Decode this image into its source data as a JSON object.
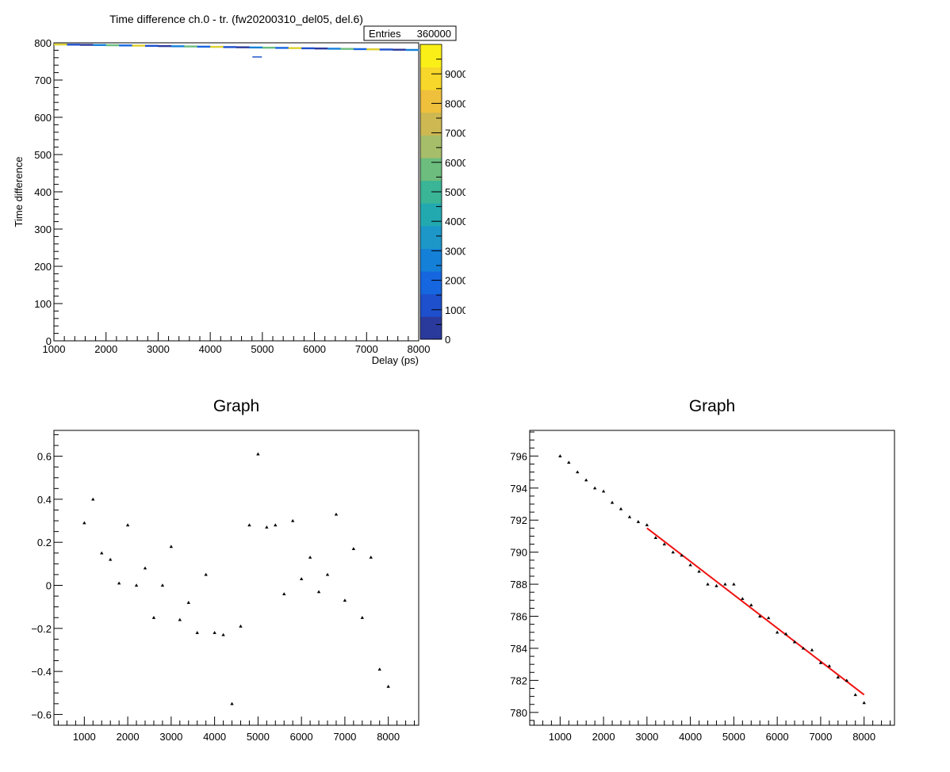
{
  "chart_data": [
    {
      "type": "heatmap",
      "title": "Time difference ch.0 - tr. (fw20200310_del05, del.6)",
      "xlabel": "Delay (ps)",
      "ylabel": "Time difference",
      "xlim": [
        1000,
        8000
      ],
      "ylim": [
        0,
        800
      ],
      "xticks": [
        "1000",
        "2000",
        "3000",
        "4000",
        "5000",
        "6000",
        "7000",
        "8000"
      ],
      "yticks": [
        "0",
        "100",
        "200",
        "300",
        "400",
        "500",
        "600",
        "700",
        "800"
      ],
      "stats_label": "Entries",
      "stats_value": "360000",
      "colorbar_ticks": [
        "0",
        "1000",
        "2000",
        "3000",
        "4000",
        "5000",
        "6000",
        "7000",
        "8000",
        "9000"
      ],
      "colorbar_range": [
        0,
        10000
      ],
      "band": {
        "x": [
          1000,
          8000
        ],
        "y": [
          795.9,
          780.6
        ]
      },
      "outlier": {
        "x": 4900,
        "y": 762
      }
    },
    {
      "type": "scatter",
      "title": "Graph",
      "xlim": [
        300,
        8700
      ],
      "ylim": [
        -0.65,
        0.72
      ],
      "xticks": [
        "1000",
        "2000",
        "3000",
        "4000",
        "5000",
        "6000",
        "7000",
        "8000"
      ],
      "yticks": [
        "−0.6",
        "−0.4",
        "−0.2",
        "0",
        "0.2",
        "0.4",
        "0.6"
      ],
      "x": [
        1000,
        1200,
        1400,
        1600,
        1800,
        2000,
        2200,
        2400,
        2600,
        2800,
        3000,
        3200,
        3400,
        3600,
        3800,
        4000,
        4200,
        4400,
        4600,
        4800,
        5000,
        5200,
        5400,
        5600,
        5800,
        6000,
        6200,
        6400,
        6600,
        6800,
        7000,
        7200,
        7400,
        7600,
        7800,
        8000
      ],
      "y": [
        0.29,
        0.4,
        0.15,
        0.12,
        0.01,
        0.28,
        0.0,
        0.08,
        -0.15,
        0.0,
        0.18,
        -0.16,
        -0.08,
        -0.22,
        0.05,
        -0.22,
        -0.23,
        -0.55,
        -0.19,
        0.28,
        0.61,
        0.27,
        0.28,
        -0.04,
        0.3,
        0.03,
        0.13,
        -0.03,
        0.05,
        0.33,
        -0.07,
        0.17,
        -0.15,
        0.13,
        -0.39,
        -0.47
      ]
    },
    {
      "type": "scatter",
      "title": "Graph",
      "xlim": [
        300,
        8700
      ],
      "ylim": [
        779.2,
        797.6
      ],
      "xticks": [
        "1000",
        "2000",
        "3000",
        "4000",
        "5000",
        "6000",
        "7000",
        "8000"
      ],
      "yticks": [
        "780",
        "782",
        "784",
        "786",
        "788",
        "790",
        "792",
        "794",
        "796"
      ],
      "x": [
        1000,
        1200,
        1400,
        1600,
        1800,
        2000,
        2200,
        2400,
        2600,
        2800,
        3000,
        3200,
        3400,
        3600,
        3800,
        4000,
        4200,
        4400,
        4600,
        4800,
        5000,
        5200,
        5400,
        5600,
        5800,
        6000,
        6200,
        6400,
        6600,
        6800,
        7000,
        7200,
        7400,
        7600,
        7800,
        8000
      ],
      "y": [
        796.0,
        795.6,
        795.0,
        794.5,
        794.0,
        793.8,
        793.1,
        792.7,
        792.2,
        791.9,
        791.7,
        790.9,
        790.5,
        790.0,
        789.8,
        789.2,
        788.8,
        788.0,
        787.9,
        788.0,
        788.0,
        787.1,
        786.7,
        786.0,
        785.9,
        785.0,
        784.9,
        784.4,
        784.0,
        783.9,
        783.1,
        782.9,
        782.2,
        782.0,
        781.1,
        780.6
      ],
      "fit": {
        "x": [
          3000,
          8000
        ],
        "y": [
          791.5,
          781.1
        ],
        "color": "#ee1111"
      }
    }
  ]
}
